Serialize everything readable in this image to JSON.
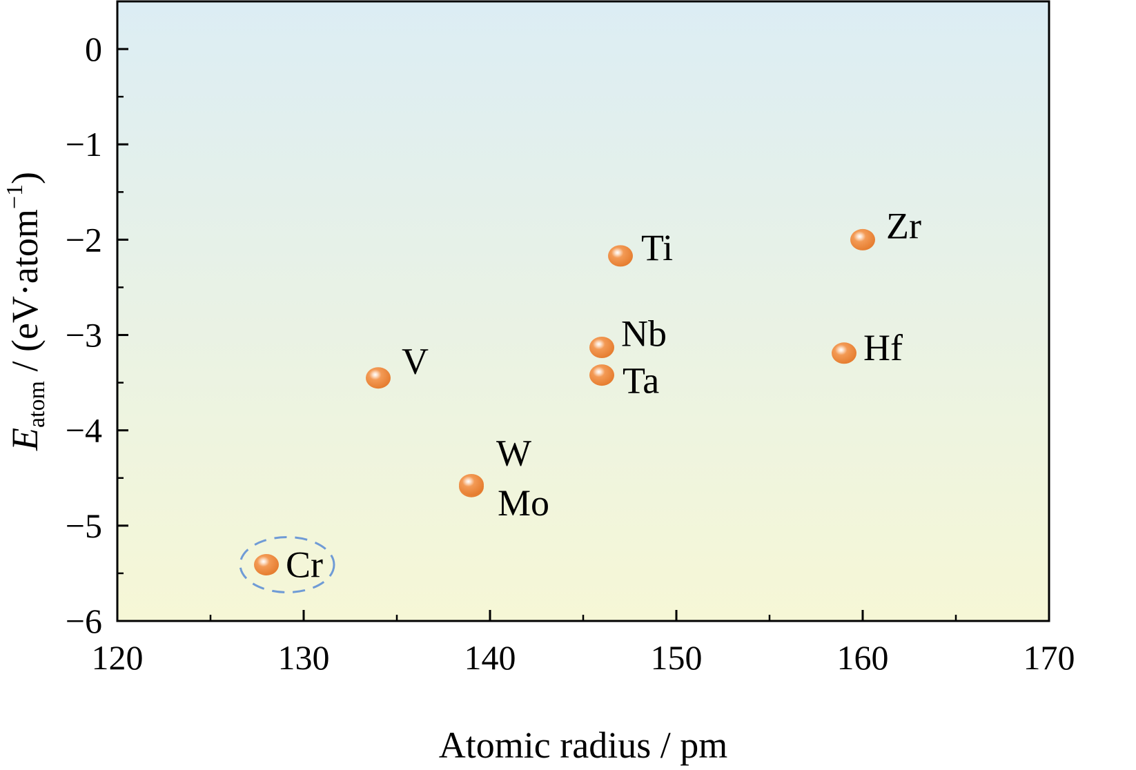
{
  "chart_data": {
    "type": "scatter",
    "xlabel": "Atomic radius / pm",
    "ylabel": {
      "symbol": "E",
      "subscript": "atom",
      "unit_open": " / (eV·atom",
      "superscript": "−1",
      "unit_close": ")"
    },
    "xlim": [
      120,
      170
    ],
    "ylim": [
      -6,
      0.5
    ],
    "x_ticks": [
      {
        "value": 120,
        "label": "120"
      },
      {
        "value": 130,
        "label": "130"
      },
      {
        "value": 140,
        "label": "140"
      },
      {
        "value": 150,
        "label": "150"
      },
      {
        "value": 160,
        "label": "160"
      },
      {
        "value": 170,
        "label": "170"
      }
    ],
    "y_ticks": [
      {
        "value": 0,
        "label": "0"
      },
      {
        "value": -1,
        "label": "−1"
      },
      {
        "value": -2,
        "label": "−2"
      },
      {
        "value": -3,
        "label": "−3"
      },
      {
        "value": -4,
        "label": "−4"
      },
      {
        "value": -5,
        "label": "−5"
      },
      {
        "value": -6,
        "label": "−6"
      }
    ],
    "grid": false,
    "background_gradient": {
      "top": "#dcedf4",
      "bottom": "#f6f7d6"
    },
    "marker_color": "#ee8a3d",
    "highlight_color": "#6f9bd6",
    "points": [
      {
        "label": "Cr",
        "x": 128,
        "y": -5.41,
        "highlighted": true
      },
      {
        "label": "V",
        "x": 134,
        "y": -3.45
      },
      {
        "label": "Mo",
        "x": 139,
        "y": -4.59
      },
      {
        "label": "W",
        "x": 139,
        "y": -4.57
      },
      {
        "label": "Ta",
        "x": 146,
        "y": -3.42
      },
      {
        "label": "Nb",
        "x": 146,
        "y": -3.13
      },
      {
        "label": "Ti",
        "x": 147,
        "y": -2.17
      },
      {
        "label": "Hf",
        "x": 159,
        "y": -3.19
      },
      {
        "label": "Zr",
        "x": 160,
        "y": -2.0
      }
    ]
  }
}
